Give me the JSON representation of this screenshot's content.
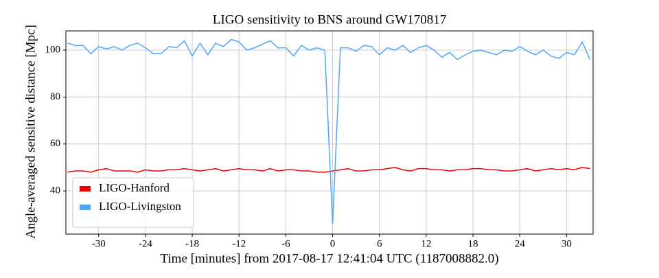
{
  "chart_data": {
    "type": "line",
    "title": "LIGO sensitivity to BNS around GW170817",
    "x_label": "Time [minutes] from 2017-08-17 12:41:04 UTC (1187008882.0)",
    "y_label": "Angle-averaged sensitive distance [Mpc]",
    "x": [
      -34,
      -33,
      -32,
      -31,
      -30,
      -29,
      -28,
      -27,
      -26,
      -25,
      -24,
      -23,
      -22,
      -21,
      -20,
      -19,
      -18,
      -17,
      -16,
      -15,
      -14,
      -13,
      -12,
      -11,
      -10,
      -9,
      -8,
      -7,
      -6,
      -5,
      -4,
      -3,
      -2,
      -1,
      0,
      1,
      2,
      3,
      4,
      5,
      6,
      7,
      8,
      9,
      10,
      11,
      12,
      13,
      14,
      15,
      16,
      17,
      18,
      19,
      20,
      21,
      22,
      23,
      24,
      25,
      26,
      27,
      28,
      29,
      30,
      31,
      32,
      33
    ],
    "series": [
      {
        "name": "LIGO-Hanford",
        "color": "#ee0000",
        "values": [
          48,
          48.5,
          48.5,
          48,
          49,
          49.5,
          48.5,
          48.5,
          48.5,
          48,
          49,
          48.5,
          48.5,
          49,
          49,
          49.5,
          49,
          48.5,
          49,
          49.5,
          48.5,
          49,
          49.5,
          49,
          49,
          48.5,
          49.5,
          48.5,
          49,
          49,
          48.5,
          48.5,
          48,
          48,
          48.5,
          49,
          49.5,
          48.5,
          48.5,
          49,
          49,
          49.5,
          50,
          49,
          48.5,
          49.5,
          49.5,
          49,
          49,
          48.5,
          49,
          49,
          49.5,
          49.5,
          49,
          49,
          48.5,
          48.5,
          49,
          49.5,
          48.5,
          49,
          49.5,
          49,
          49.5,
          49,
          50,
          49.5
        ]
      },
      {
        "name": "LIGO-Livingston",
        "color": "#4ba6ff",
        "values": [
          103,
          102,
          102,
          98.5,
          101.5,
          100.5,
          101.5,
          100,
          102,
          103,
          101,
          98.5,
          98.5,
          101.5,
          101,
          104,
          97.5,
          103,
          98,
          103,
          101.5,
          104.5,
          103.5,
          100,
          101,
          102.5,
          104,
          101,
          101,
          97.5,
          102,
          100,
          101,
          100,
          26,
          101,
          101,
          99.5,
          102,
          101.5,
          98,
          101,
          100,
          102,
          99,
          101,
          102,
          100,
          97,
          99,
          96,
          98,
          99.5,
          100,
          99,
          98,
          100,
          99.5,
          101.5,
          99.5,
          98,
          100,
          97.5,
          96.5,
          99,
          98,
          103.5,
          96
        ]
      }
    ],
    "xlim": [
      -34.2,
      33.4
    ],
    "ylim": [
      21.6,
      108.2
    ],
    "xticks": [
      -30,
      -24,
      -18,
      -12,
      -6,
      0,
      6,
      12,
      18,
      24,
      30
    ],
    "yticks": [
      40,
      60,
      80,
      100
    ],
    "grid": true,
    "legend": "lower left"
  }
}
